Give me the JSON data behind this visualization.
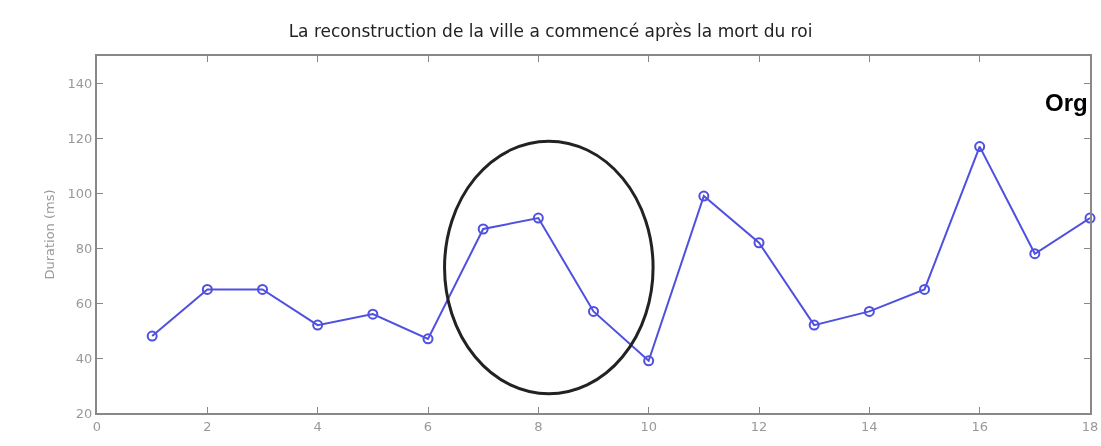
{
  "chart_data": {
    "type": "line",
    "title": "La reconstruction de la ville a commencé après la mort du roi",
    "ylabel": "Duration (ms)",
    "annotations": [
      "Org"
    ],
    "x": [
      1,
      2,
      3,
      4,
      5,
      6,
      7,
      8,
      9,
      10,
      11,
      12,
      13,
      14,
      15,
      16,
      17,
      18
    ],
    "series": [
      {
        "color": "#5050e0",
        "values": [
          48,
          65,
          65,
          52,
          56,
          47,
          87,
          91,
          57,
          39,
          99,
          82,
          52,
          57,
          65,
          117,
          78,
          91
        ]
      }
    ],
    "xlim": [
      0,
      18
    ],
    "xticks": [
      0,
      2,
      4,
      6,
      8,
      10,
      12,
      14,
      16,
      18
    ],
    "ylim": [
      20,
      150
    ],
    "yticks": [
      20,
      40,
      60,
      80,
      100,
      120,
      140
    ],
    "grid": false,
    "marker": "circle",
    "line_style": "solid"
  }
}
